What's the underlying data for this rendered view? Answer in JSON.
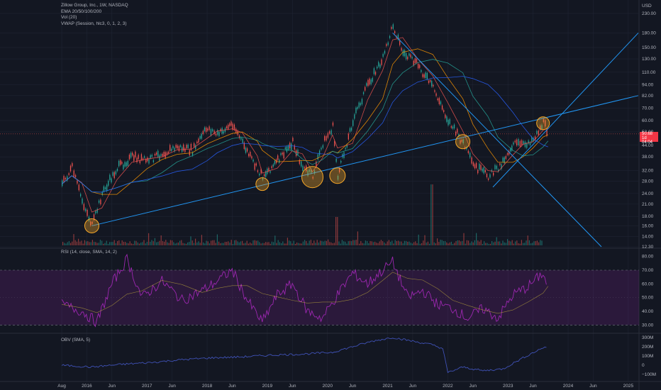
{
  "header": {
    "title": "Zillow Group, Inc., 1W, NASDAQ",
    "indicators": [
      "EMA 20/50/100/200",
      "Vol (20)",
      "VWAP (Session, hlc3, 0, 1, 2, 3)"
    ],
    "currency": "USD"
  },
  "price_tag": {
    "price": "50.68",
    "countdown": "1d 04:04"
  },
  "rsi_label": "RSI (14, close, SMA, 14, 2)",
  "obv_label": "OBV (SMA, 5)",
  "colors": {
    "background": "#131722",
    "grid": "#1f2433",
    "up": "#26a69a",
    "down": "#ef5350",
    "trendline": "#2196f3",
    "highlight": "#f7a828",
    "rsi": "#9c27b0",
    "obv": "#3f51b5"
  },
  "chart_data": [
    {
      "type": "line",
      "title": "Zillow Group, Inc., 1W, NASDAQ",
      "scale": "log",
      "ylim": [
        12.3,
        236
      ],
      "x_ticks": [
        "Aug",
        "2016",
        "Jun",
        "2017",
        "Jun",
        "2018",
        "Jun",
        "2019",
        "Jun",
        "2020",
        "Jun",
        "2021",
        "Jun",
        "2022",
        "Jun",
        "2023",
        "Jun",
        "2024",
        "Jun",
        "2025"
      ],
      "y_ticks": [
        "230.00",
        "180.00",
        "150.00",
        "130.00",
        "110.00",
        "94.00",
        "82.00",
        "70.00",
        "60.00",
        "52.00",
        "44.00",
        "38.00",
        "32.00",
        "28.00",
        "24.00",
        "21.00",
        "18.00",
        "16.00",
        "14.00",
        "12.30"
      ],
      "series": [
        {
          "x": [
            "2015-08",
            "2015-10",
            "2015-12",
            "2016-02",
            "2016-04",
            "2016-07",
            "2016-10",
            "2017-01",
            "2017-04",
            "2017-07",
            "2017-10",
            "2018-01",
            "2018-03",
            "2018-06",
            "2018-08",
            "2018-11",
            "2018-12",
            "2019-03",
            "2019-06",
            "2019-08",
            "2019-10",
            "2019-12",
            "2020-02",
            "2020-03",
            "2020-06",
            "2020-09",
            "2020-12",
            "2021-02",
            "2021-04",
            "2021-07",
            "2021-10",
            "2022-01",
            "2022-04",
            "2022-06",
            "2022-09",
            "2022-11",
            "2023-02",
            "2023-04",
            "2023-06",
            "2023-08",
            "2023-09"
          ],
          "values": [
            27,
            33,
            22,
            16,
            24,
            33,
            38,
            36,
            40,
            43,
            41,
            55,
            50,
            58,
            45,
            32,
            30,
            36,
            46,
            33,
            30,
            45,
            55,
            30,
            60,
            95,
            130,
            200,
            140,
            120,
            90,
            60,
            45,
            34,
            30,
            33,
            45,
            44,
            48,
            58,
            50.68
          ]
        }
      ],
      "annotations": {
        "circled_points": [
          "2016-02",
          "2018-12",
          "2019-10",
          "2020-03",
          "2022-04",
          "2023-08"
        ]
      }
    },
    {
      "type": "line",
      "title": "RSI (14, close, SMA, 14, 2)",
      "ylim": [
        25,
        85
      ],
      "y_ticks": [
        "80.00",
        "70.00",
        "60.00",
        "50.00",
        "40.00",
        "30.00"
      ],
      "bands": [
        30,
        70
      ],
      "series": [
        {
          "x": [
            "2015-08",
            "2015-12",
            "2016-03",
            "2016-06",
            "2016-09",
            "2016-12",
            "2017-04",
            "2017-08",
            "2017-12",
            "2018-03",
            "2018-06",
            "2018-09",
            "2018-12",
            "2019-03",
            "2019-06",
            "2019-09",
            "2019-12",
            "2020-03",
            "2020-06",
            "2020-09",
            "2020-12",
            "2021-02",
            "2021-05",
            "2021-08",
            "2021-11",
            "2022-02",
            "2022-05",
            "2022-08",
            "2022-11",
            "2023-02",
            "2023-05",
            "2023-08",
            "2023-09"
          ],
          "values": [
            45,
            40,
            32,
            60,
            78,
            50,
            62,
            48,
            55,
            62,
            70,
            48,
            32,
            52,
            60,
            40,
            35,
            52,
            68,
            60,
            70,
            76,
            50,
            55,
            45,
            42,
            35,
            42,
            35,
            52,
            58,
            68,
            55
          ]
        }
      ]
    },
    {
      "type": "line",
      "title": "OBV (SMA, 5)",
      "y_ticks": [
        "300M",
        "200M",
        "100M",
        "0",
        "−100M"
      ],
      "series": [
        {
          "x": [
            "2015-08",
            "2016-02",
            "2016-08",
            "2017-02",
            "2017-08",
            "2018-02",
            "2018-08",
            "2019-02",
            "2019-08",
            "2020-02",
            "2020-06",
            "2020-10",
            "2021-02",
            "2021-06",
            "2021-10",
            "2021-12",
            "2022-01",
            "2022-04",
            "2022-08",
            "2022-12",
            "2023-04",
            "2023-08",
            "2023-09"
          ],
          "values": [
            0,
            -20,
            10,
            30,
            60,
            80,
            90,
            110,
            120,
            140,
            200,
            260,
            300,
            260,
            220,
            180,
            -80,
            -20,
            -60,
            -40,
            80,
            190,
            200
          ]
        }
      ]
    }
  ]
}
